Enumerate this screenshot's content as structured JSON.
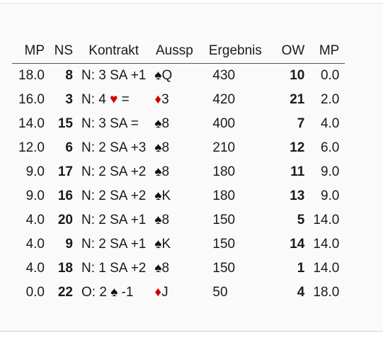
{
  "headers": {
    "mp_ns": "MP",
    "ns": "NS",
    "contract": "Kontrakt",
    "lead": "Aussp",
    "score": "Ergebnis",
    "ew": "OW",
    "mp_ew": "MP"
  },
  "colors": {
    "red_suit": "#d10000",
    "black_suit": "#111111"
  },
  "rows": [
    {
      "mp_ns": "18.0",
      "ns": "8",
      "contract_pre": "N: 3 SA +1",
      "contract_suit": "",
      "contract_suit_icon": "",
      "contract_post": "",
      "lead_suit": "♠",
      "lead_suit_icon": "spade-icon",
      "lead_card": "Q",
      "score": "430",
      "ew": "10",
      "mp_ew": "0.0"
    },
    {
      "mp_ns": "16.0",
      "ns": "3",
      "contract_pre": "N: 4 ",
      "contract_suit": "♥",
      "contract_suit_icon": "heart-icon",
      "contract_post": " =",
      "lead_suit": "♦",
      "lead_suit_icon": "diamond-icon",
      "lead_card": "3",
      "score": "420",
      "ew": "21",
      "mp_ew": "2.0"
    },
    {
      "mp_ns": "14.0",
      "ns": "15",
      "contract_pre": "N: 3 SA =",
      "contract_suit": "",
      "contract_suit_icon": "",
      "contract_post": "",
      "lead_suit": "♠",
      "lead_suit_icon": "spade-icon",
      "lead_card": "8",
      "score": "400",
      "ew": "7",
      "mp_ew": "4.0"
    },
    {
      "mp_ns": "12.0",
      "ns": "6",
      "contract_pre": "N: 2 SA +3",
      "contract_suit": "",
      "contract_suit_icon": "",
      "contract_post": "",
      "lead_suit": "♠",
      "lead_suit_icon": "spade-icon",
      "lead_card": "8",
      "score": "210",
      "ew": "12",
      "mp_ew": "6.0"
    },
    {
      "mp_ns": "9.0",
      "ns": "17",
      "contract_pre": "N: 2 SA +2",
      "contract_suit": "",
      "contract_suit_icon": "",
      "contract_post": "",
      "lead_suit": "♠",
      "lead_suit_icon": "spade-icon",
      "lead_card": "8",
      "score": "180",
      "ew": "11",
      "mp_ew": "9.0"
    },
    {
      "mp_ns": "9.0",
      "ns": "16",
      "contract_pre": "N: 2 SA +2",
      "contract_suit": "",
      "contract_suit_icon": "",
      "contract_post": "",
      "lead_suit": "♠",
      "lead_suit_icon": "spade-icon",
      "lead_card": "K",
      "score": "180",
      "ew": "13",
      "mp_ew": "9.0"
    },
    {
      "mp_ns": "4.0",
      "ns": "20",
      "contract_pre": "N: 2 SA +1",
      "contract_suit": "",
      "contract_suit_icon": "",
      "contract_post": "",
      "lead_suit": "♠",
      "lead_suit_icon": "spade-icon",
      "lead_card": "8",
      "score": "150",
      "ew": "5",
      "mp_ew": "14.0"
    },
    {
      "mp_ns": "4.0",
      "ns": "9",
      "contract_pre": "N: 2 SA +1",
      "contract_suit": "",
      "contract_suit_icon": "",
      "contract_post": "",
      "lead_suit": "♠",
      "lead_suit_icon": "spade-icon",
      "lead_card": "K",
      "score": "150",
      "ew": "14",
      "mp_ew": "14.0"
    },
    {
      "mp_ns": "4.0",
      "ns": "18",
      "contract_pre": "N: 1 SA +2",
      "contract_suit": "",
      "contract_suit_icon": "",
      "contract_post": "",
      "lead_suit": "♠",
      "lead_suit_icon": "spade-icon",
      "lead_card": "8",
      "score": "150",
      "ew": "1",
      "mp_ew": "14.0"
    },
    {
      "mp_ns": "0.0",
      "ns": "22",
      "contract_pre": "O: 2 ",
      "contract_suit": "♠",
      "contract_suit_icon": "spade-icon",
      "contract_post": " -1",
      "lead_suit": "♦",
      "lead_suit_icon": "diamond-icon",
      "lead_card": "J",
      "score": "50",
      "ew": "4",
      "mp_ew": "18.0"
    }
  ]
}
